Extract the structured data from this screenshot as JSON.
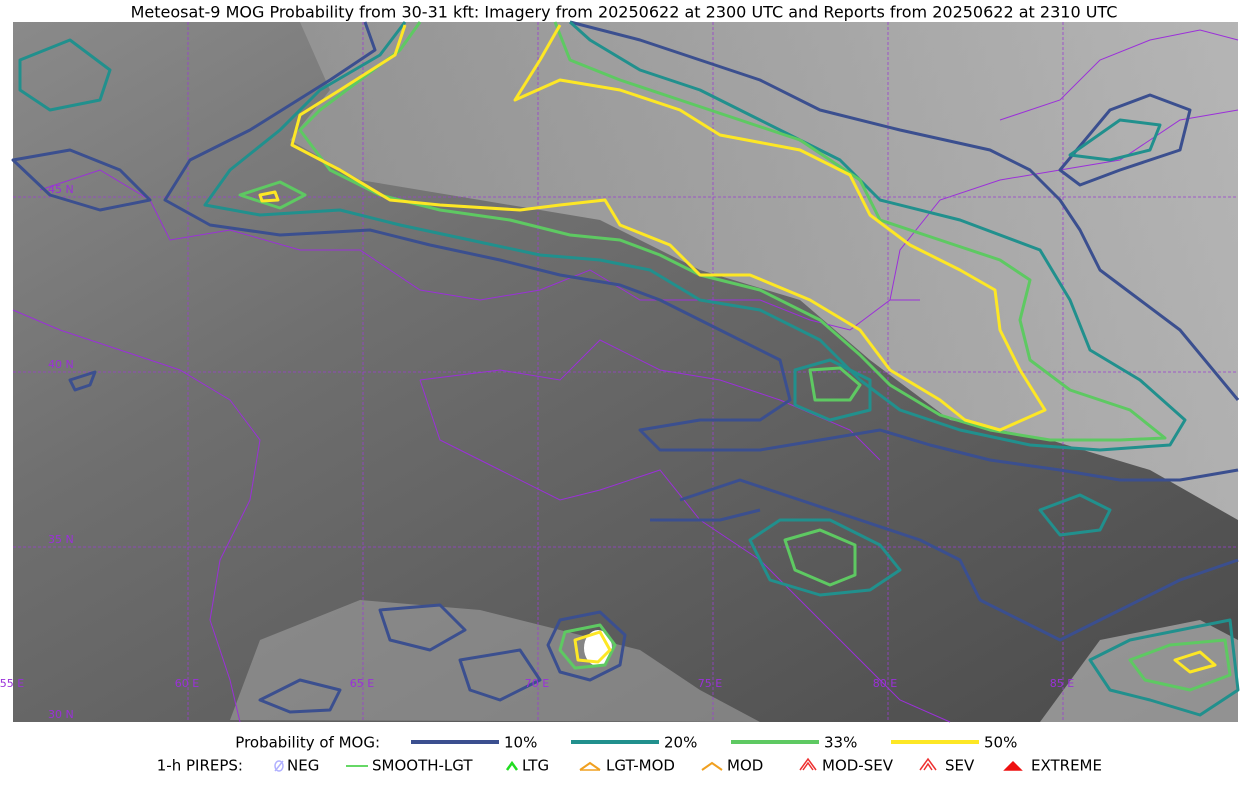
{
  "title": "Meteosat-9 MOG Probability from 30-31 kft: Imagery from 20250622 at 2300 UTC and Reports from 20250622 at 2310 UTC",
  "grid_labels": {
    "lat": [
      "45 N",
      "40 N",
      "35 N",
      "30 N"
    ],
    "lon": [
      "55 E",
      "60 E",
      "65 E",
      "70 E",
      "75 E",
      "80 E",
      "85 E"
    ]
  },
  "legend": {
    "probability": {
      "label": "Probability of MOG:",
      "levels": [
        {
          "label": "10%",
          "color": "#3b4f8f"
        },
        {
          "label": "20%",
          "color": "#21908d"
        },
        {
          "label": "33%",
          "color": "#5ec962"
        },
        {
          "label": "50%",
          "color": "#fde725"
        }
      ]
    },
    "pireps": {
      "label": "1-h PIREPS:",
      "items": [
        "NEG",
        "SMOOTH-LGT",
        "LTG",
        "LGT-MOD",
        "MOD",
        "MOD-SEV",
        "SEV",
        "EXTREME"
      ]
    }
  }
}
